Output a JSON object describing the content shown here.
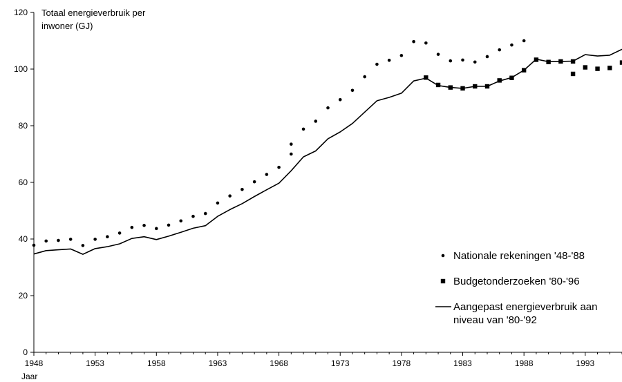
{
  "chart_data": {
    "type": "line",
    "title": "",
    "ylabel": [
      "Totaal energieverbruik per",
      "inwoner (GJ)"
    ],
    "xlabel": "Jaar",
    "xlim": [
      1948,
      1996
    ],
    "ylim": [
      0,
      120
    ],
    "x_ticks": [
      1948,
      1953,
      1958,
      1963,
      1968,
      1973,
      1978,
      1983,
      1988,
      1993
    ],
    "y_ticks": [
      0,
      20,
      40,
      60,
      80,
      100,
      120
    ],
    "grid": false,
    "legend_position": "bottom-right",
    "series": [
      {
        "name": "Nationale rekeningen '48-'88",
        "marker": "dot",
        "style": "markers",
        "x": [
          1948,
          1949,
          1950,
          1951,
          1952,
          1953,
          1954,
          1955,
          1956,
          1957,
          1958,
          1959,
          1960,
          1961,
          1962,
          1963,
          1964,
          1965,
          1966,
          1967,
          1968,
          1969,
          1969,
          1970,
          1971,
          1972,
          1973,
          1974,
          1975,
          1976,
          1977,
          1978,
          1979,
          1980,
          1981,
          1982,
          1983,
          1984,
          1985,
          1986,
          1987,
          1988
        ],
        "y": [
          37.8,
          39.3,
          39.5,
          39.9,
          37.7,
          39.9,
          40.8,
          42.1,
          44.1,
          44.8,
          43.7,
          44.9,
          46.4,
          48.0,
          49.0,
          52.7,
          55.2,
          57.5,
          60.2,
          62.8,
          65.3,
          70.0,
          73.5,
          78.8,
          81.6,
          86.3,
          89.2,
          92.5,
          97.3,
          101.7,
          103.1,
          104.8,
          109.7,
          109.2,
          105.2,
          102.9,
          103.2,
          102.5,
          104.4,
          106.8,
          108.5,
          110.0
        ]
      },
      {
        "name": "Budgetonderzoeken '80-'96",
        "marker": "square",
        "style": "markers",
        "x": [
          1980,
          1981,
          1982,
          1983,
          1984,
          1985,
          1986,
          1987,
          1988,
          1989,
          1990,
          1991,
          1992,
          1992,
          1993,
          1994,
          1995,
          1996
        ],
        "y": [
          97.0,
          94.4,
          93.5,
          93.2,
          93.9,
          93.9,
          96.0,
          96.9,
          99.6,
          103.3,
          102.5,
          102.7,
          102.7,
          98.3,
          100.6,
          100.1,
          100.4,
          102.3
        ]
      },
      {
        "name": "Aangepast energieverbruik aan niveau van '80-'92",
        "marker": "none",
        "style": "line",
        "x": [
          1948,
          1949,
          1950,
          1951,
          1952,
          1953,
          1954,
          1955,
          1956,
          1957,
          1958,
          1959,
          1960,
          1961,
          1962,
          1963,
          1964,
          1965,
          1966,
          1967,
          1968,
          1969,
          1970,
          1971,
          1972,
          1973,
          1974,
          1975,
          1976,
          1977,
          1978,
          1979,
          1980,
          1981,
          1982,
          1983,
          1984,
          1985,
          1986,
          1987,
          1988,
          1989,
          1990,
          1991,
          1992,
          1993,
          1994,
          1995,
          1996
        ],
        "y": [
          34.7,
          35.9,
          36.2,
          36.5,
          34.6,
          36.6,
          37.3,
          38.3,
          40.2,
          40.8,
          39.8,
          41.0,
          42.4,
          43.8,
          44.7,
          48.0,
          50.4,
          52.5,
          55.0,
          57.4,
          59.7,
          64.1,
          69.0,
          71.1,
          75.4,
          77.8,
          80.8,
          84.8,
          88.8,
          90.0,
          91.5,
          95.8,
          96.8,
          94.2,
          93.5,
          93.2,
          93.9,
          93.9,
          95.8,
          97.0,
          99.6,
          103.5,
          102.6,
          102.7,
          102.8,
          105.1,
          104.6,
          104.9,
          107.0
        ]
      }
    ]
  }
}
